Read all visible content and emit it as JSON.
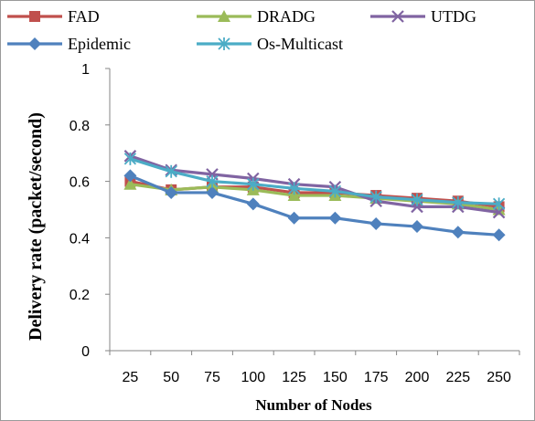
{
  "chart_data": {
    "type": "line",
    "title": "",
    "xlabel": "Number of Nodes",
    "ylabel": "Delivery rate (packet/second)",
    "categories": [
      "25",
      "50",
      "75",
      "100",
      "125",
      "150",
      "175",
      "200",
      "225",
      "250"
    ],
    "ylim": [
      0,
      1
    ],
    "yticks": [
      "0",
      "0.2",
      "0.4",
      "0.6",
      "0.8",
      "1"
    ],
    "grid": false,
    "legend_position": "top",
    "series": [
      {
        "name": "FAD",
        "color": "#c0504d",
        "marker": "square",
        "values": [
          0.6,
          0.57,
          0.58,
          0.58,
          0.56,
          0.56,
          0.55,
          0.54,
          0.53,
          0.51
        ]
      },
      {
        "name": "DRADG",
        "color": "#9bbb59",
        "marker": "triangle",
        "values": [
          0.59,
          0.57,
          0.58,
          0.57,
          0.55,
          0.55,
          0.54,
          0.53,
          0.52,
          0.5
        ]
      },
      {
        "name": "UTDG",
        "color": "#8064a2",
        "marker": "x",
        "values": [
          0.69,
          0.64,
          0.625,
          0.61,
          0.59,
          0.58,
          0.53,
          0.51,
          0.51,
          0.49
        ]
      },
      {
        "name": "Epidemic",
        "color": "#4f81bd",
        "marker": "diamond",
        "values": [
          0.62,
          0.56,
          0.56,
          0.52,
          0.47,
          0.47,
          0.45,
          0.44,
          0.42,
          0.41
        ]
      },
      {
        "name": "Os-Multicast",
        "color": "#4bacc6",
        "marker": "asterisk",
        "values": [
          0.68,
          0.635,
          0.6,
          0.59,
          0.575,
          0.565,
          0.545,
          0.535,
          0.525,
          0.52
        ]
      }
    ]
  }
}
